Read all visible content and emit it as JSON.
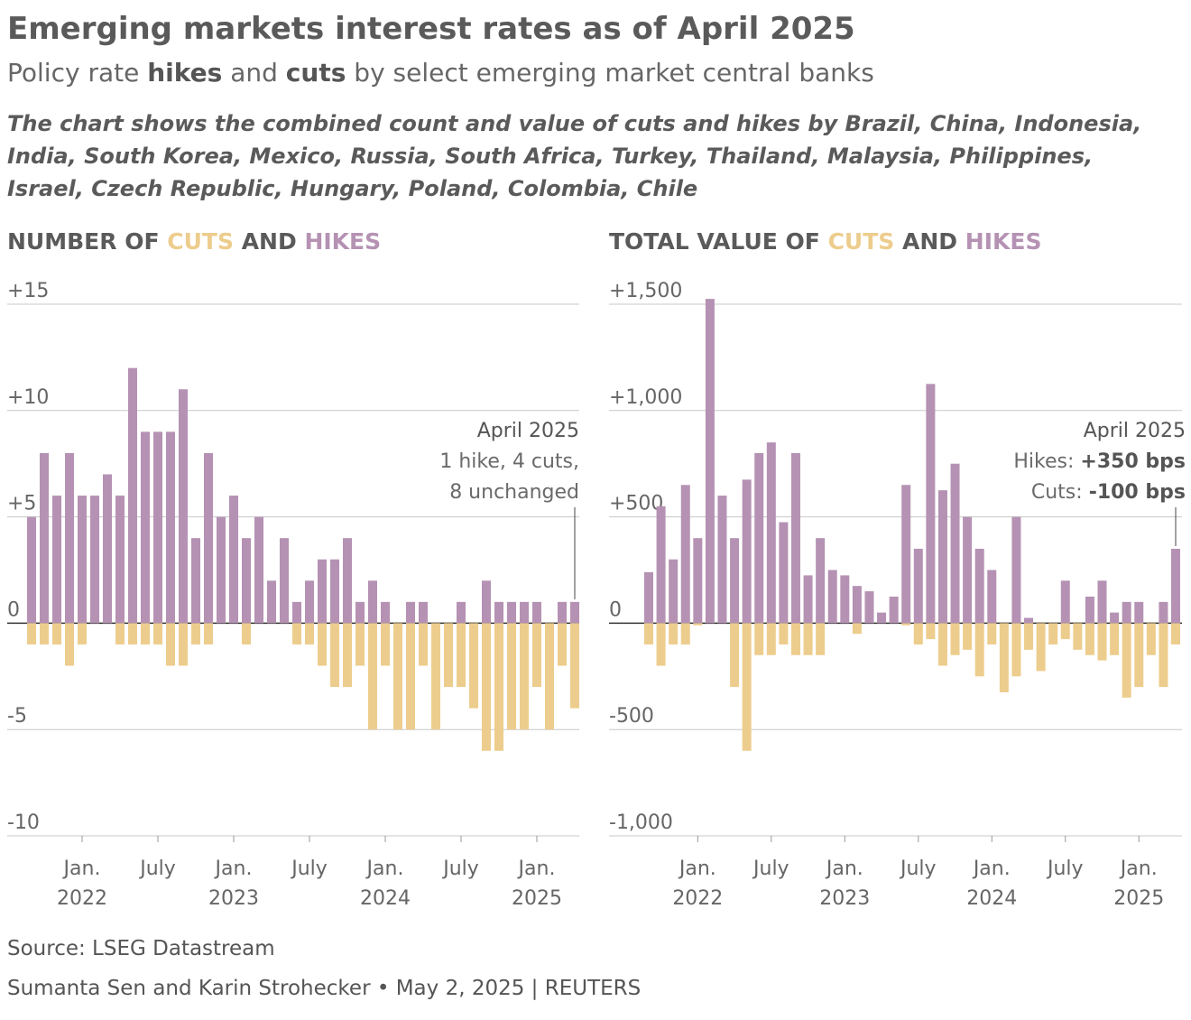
{
  "title": "Emerging markets interest rates as of April 2025",
  "subtitle": [
    {
      "text": "Policy rate",
      "bold": false
    },
    {
      "text": "hikes",
      "bold": true
    },
    {
      "text": "and",
      "bold": false
    },
    {
      "text": "cuts",
      "bold": true
    },
    {
      "text": "by select emerging market central banks",
      "bold": false
    }
  ],
  "description": "The chart shows the combined count and value of cuts and hikes by Brazil, China, Indonesia, India, South Korea, Mexico, Russia, South Africa, Turkey, Thailand, Malaysia, Philippines, Israel, Czech Republic, Hungary, Poland, Colombia, Chile",
  "source": "Source: LSEG Datastream",
  "byline": "Sumanta Sen and Karin Strohecker • May 2, 2025 | REUTERS",
  "chart_data": [
    {
      "type": "bar",
      "title_prefix": "NUMBER OF",
      "title_joiner": "AND",
      "x": [
        "2021-09",
        "2021-10",
        "2021-11",
        "2021-12",
        "2022-01",
        "2022-02",
        "2022-03",
        "2022-04",
        "2022-05",
        "2022-06",
        "2022-07",
        "2022-08",
        "2022-09",
        "2022-10",
        "2022-11",
        "2022-12",
        "2023-01",
        "2023-02",
        "2023-03",
        "2023-04",
        "2023-05",
        "2023-06",
        "2023-07",
        "2023-08",
        "2023-09",
        "2023-10",
        "2023-11",
        "2023-12",
        "2024-01",
        "2024-02",
        "2024-03",
        "2024-04",
        "2024-05",
        "2024-06",
        "2024-07",
        "2024-08",
        "2024-09",
        "2024-10",
        "2024-11",
        "2024-12",
        "2025-01",
        "2025-02",
        "2025-03",
        "2025-04"
      ],
      "xticks": [
        {
          "value": "2022-01",
          "label": [
            "Jan.",
            "2022"
          ]
        },
        {
          "value": "2022-07",
          "label": [
            "July"
          ]
        },
        {
          "value": "2023-01",
          "label": [
            "Jan.",
            "2023"
          ]
        },
        {
          "value": "2023-07",
          "label": [
            "July"
          ]
        },
        {
          "value": "2024-01",
          "label": [
            "Jan.",
            "2024"
          ]
        },
        {
          "value": "2024-07",
          "label": [
            "July"
          ]
        },
        {
          "value": "2025-01",
          "label": [
            "Jan.",
            "2025"
          ]
        }
      ],
      "ylim": [
        -10,
        15
      ],
      "yticks": [
        {
          "value": 15,
          "label": "+15"
        },
        {
          "value": 10,
          "label": "+10"
        },
        {
          "value": 5,
          "label": "+5"
        },
        0,
        -5,
        -10
      ],
      "grid": true,
      "series": [
        {
          "name": "CUTS",
          "color": "#edcd8d",
          "values": [
            -1,
            -1,
            -1,
            -2,
            -1,
            0,
            0,
            -1,
            -1,
            -1,
            -1,
            -2,
            -2,
            -1,
            -1,
            0,
            0,
            -1,
            0,
            0,
            0,
            -1,
            -1,
            -2,
            -3,
            -3,
            -2,
            -5,
            -2,
            -5,
            -5,
            -2,
            -5,
            -3,
            -3,
            -4,
            -6,
            -6,
            -5,
            -5,
            -3,
            -5,
            -2,
            -4
          ]
        },
        {
          "name": "HIKES",
          "color": "#b592b3",
          "values": [
            5,
            8,
            6,
            8,
            6,
            6,
            7,
            6,
            12,
            9,
            9,
            9,
            11,
            4,
            8,
            5,
            6,
            4,
            5,
            2,
            4,
            1,
            2,
            3,
            3,
            4,
            1,
            2,
            1,
            0,
            1,
            1,
            0,
            0,
            1,
            0,
            2,
            1,
            1,
            1,
            1,
            0,
            1,
            1
          ]
        }
      ],
      "annotation": {
        "x": "2025-04",
        "lines": [
          [
            {
              "text": "April 2025",
              "bold": false
            }
          ],
          [
            {
              "text": "1 hike, 4 cuts,",
              "bold": false
            }
          ],
          [
            {
              "text": "8 unchanged",
              "bold": false
            }
          ]
        ]
      }
    },
    {
      "type": "bar",
      "title_prefix": "TOTAL VALUE OF",
      "title_joiner": "AND",
      "x": [
        "2021-09",
        "2021-10",
        "2021-11",
        "2021-12",
        "2022-01",
        "2022-02",
        "2022-03",
        "2022-04",
        "2022-05",
        "2022-06",
        "2022-07",
        "2022-08",
        "2022-09",
        "2022-10",
        "2022-11",
        "2022-12",
        "2023-01",
        "2023-02",
        "2023-03",
        "2023-04",
        "2023-05",
        "2023-06",
        "2023-07",
        "2023-08",
        "2023-09",
        "2023-10",
        "2023-11",
        "2023-12",
        "2024-01",
        "2024-02",
        "2024-03",
        "2024-04",
        "2024-05",
        "2024-06",
        "2024-07",
        "2024-08",
        "2024-09",
        "2024-10",
        "2024-11",
        "2024-12",
        "2025-01",
        "2025-02",
        "2025-03",
        "2025-04"
      ],
      "xticks": [
        {
          "value": "2022-01",
          "label": [
            "Jan.",
            "2022"
          ]
        },
        {
          "value": "2022-07",
          "label": [
            "July"
          ]
        },
        {
          "value": "2023-01",
          "label": [
            "Jan.",
            "2023"
          ]
        },
        {
          "value": "2023-07",
          "label": [
            "July"
          ]
        },
        {
          "value": "2024-01",
          "label": [
            "Jan.",
            "2024"
          ]
        },
        {
          "value": "2024-07",
          "label": [
            "July"
          ]
        },
        {
          "value": "2025-01",
          "label": [
            "Jan.",
            "2025"
          ]
        }
      ],
      "ylim": [
        -1000,
        1500
      ],
      "yticks": [
        {
          "value": 1500,
          "label": "+1,500"
        },
        {
          "value": 1000,
          "label": "+1,000"
        },
        {
          "value": 500,
          "label": "+500"
        },
        0,
        -500,
        {
          "value": -1000,
          "label": "-1,000"
        }
      ],
      "grid": true,
      "series": [
        {
          "name": "CUTS",
          "color": "#edcd8d",
          "values": [
            -100,
            -200,
            -100,
            -100,
            -10,
            0,
            0,
            -300,
            -600,
            -150,
            -150,
            -100,
            -150,
            -150,
            -150,
            0,
            0,
            -50,
            0,
            0,
            0,
            -10,
            -100,
            -75,
            -200,
            -150,
            -125,
            -250,
            -100,
            -325,
            -250,
            -125,
            -225,
            -100,
            -75,
            -125,
            -150,
            -175,
            -150,
            -350,
            -300,
            -150,
            -300,
            -100
          ]
        },
        {
          "name": "HIKES",
          "color": "#b592b3",
          "values": [
            240,
            550,
            300,
            650,
            400,
            1525,
            600,
            400,
            675,
            800,
            850,
            475,
            800,
            225,
            400,
            250,
            225,
            175,
            150,
            50,
            125,
            650,
            350,
            1125,
            625,
            750,
            500,
            350,
            250,
            0,
            500,
            25,
            0,
            0,
            200,
            0,
            125,
            200,
            50,
            100,
            100,
            0,
            100,
            350
          ]
        }
      ],
      "annotation": {
        "x": "2025-04",
        "lines": [
          [
            {
              "text": "April 2025",
              "bold": false
            }
          ],
          [
            {
              "text": "Hikes:",
              "bold": false
            },
            {
              "text": "+350 bps",
              "bold": true
            }
          ],
          [
            {
              "text": "Cuts:",
              "bold": false
            },
            {
              "text": "-100 bps",
              "bold": true
            }
          ]
        ]
      }
    }
  ]
}
